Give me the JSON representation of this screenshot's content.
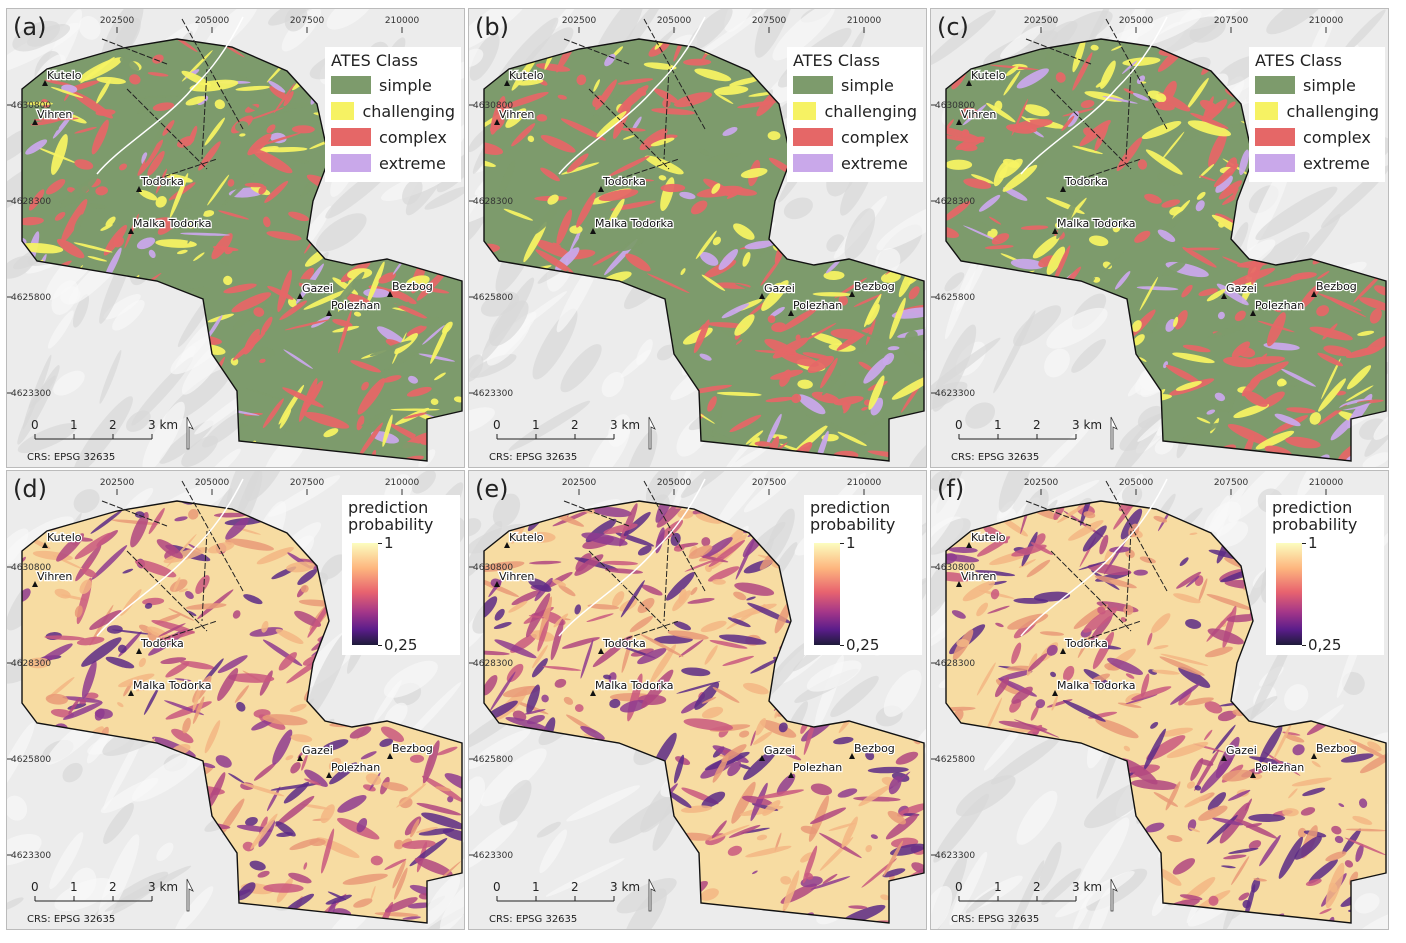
{
  "map": {
    "x_ticks": [
      202500,
      205000,
      207500,
      210000
    ],
    "y_ticks": [
      4630800,
      4628300,
      4625800,
      4623300
    ],
    "places": [
      "Kutelo",
      "Vihren",
      "Todorka",
      "Malka Todorka",
      "Gazei",
      "Bezbog",
      "Polezhan"
    ],
    "scale_bar": {
      "ticks": [
        0,
        1,
        2,
        {
          "value": 3,
          "label": "3 km"
        }
      ]
    },
    "crs": "CRS: EPSG 32635"
  },
  "ates_maps": {
    "panels": [
      "(a)",
      "(b)",
      "(c)"
    ],
    "legend": {
      "title": "ATES Class",
      "classes": [
        {
          "name": "simple",
          "color": "#7d9b6c"
        },
        {
          "name": "challenging",
          "color": "#f6f263"
        },
        {
          "name": "complex",
          "color": "#e56767"
        },
        {
          "name": "extreme",
          "color": "#c9a8ea"
        }
      ]
    }
  },
  "probability_maps": {
    "panels": [
      "(d)",
      "(e)",
      "(f)"
    ],
    "legend": {
      "title": "prediction probability",
      "range": [
        0.25,
        1
      ],
      "ticks": [
        1,
        {
          "value": 0.25,
          "label": "0,25"
        }
      ]
    }
  }
}
